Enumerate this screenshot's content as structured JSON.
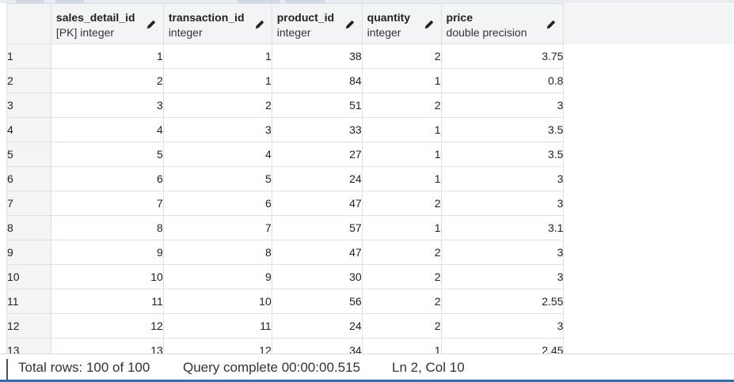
{
  "columns": [
    {
      "name": "sales_detail_id",
      "type": "[PK] integer"
    },
    {
      "name": "transaction_id",
      "type": "integer"
    },
    {
      "name": "product_id",
      "type": "integer"
    },
    {
      "name": "quantity",
      "type": "integer"
    },
    {
      "name": "price",
      "type": "double precision"
    }
  ],
  "rows": [
    {
      "rownum": "1",
      "cells": [
        "1",
        "1",
        "38",
        "2",
        "3.75"
      ]
    },
    {
      "rownum": "2",
      "cells": [
        "2",
        "1",
        "84",
        "1",
        "0.8"
      ]
    },
    {
      "rownum": "3",
      "cells": [
        "3",
        "2",
        "51",
        "2",
        "3"
      ]
    },
    {
      "rownum": "4",
      "cells": [
        "4",
        "3",
        "33",
        "1",
        "3.5"
      ]
    },
    {
      "rownum": "5",
      "cells": [
        "5",
        "4",
        "27",
        "1",
        "3.5"
      ]
    },
    {
      "rownum": "6",
      "cells": [
        "6",
        "5",
        "24",
        "1",
        "3"
      ]
    },
    {
      "rownum": "7",
      "cells": [
        "7",
        "6",
        "47",
        "2",
        "3"
      ]
    },
    {
      "rownum": "8",
      "cells": [
        "8",
        "7",
        "57",
        "1",
        "3.1"
      ]
    },
    {
      "rownum": "9",
      "cells": [
        "9",
        "8",
        "47",
        "2",
        "3"
      ]
    },
    {
      "rownum": "10",
      "cells": [
        "10",
        "9",
        "30",
        "2",
        "3"
      ]
    },
    {
      "rownum": "11",
      "cells": [
        "11",
        "10",
        "56",
        "2",
        "2.55"
      ]
    },
    {
      "rownum": "12",
      "cells": [
        "12",
        "11",
        "24",
        "2",
        "3"
      ]
    },
    {
      "rownum": "13",
      "cells": [
        "13",
        "12",
        "34",
        "1",
        "2.45"
      ]
    }
  ],
  "status": {
    "total_rows": "Total rows: 100 of 100",
    "query": "Query complete 00:00:00.515",
    "cursor": "Ln 2, Col 10"
  },
  "icons": {
    "edit_column": "pencil-icon"
  },
  "colors": {
    "accent": "#2f6fb3",
    "header_bg": "#f3f4f6",
    "grid_line": "#dde1e6"
  }
}
